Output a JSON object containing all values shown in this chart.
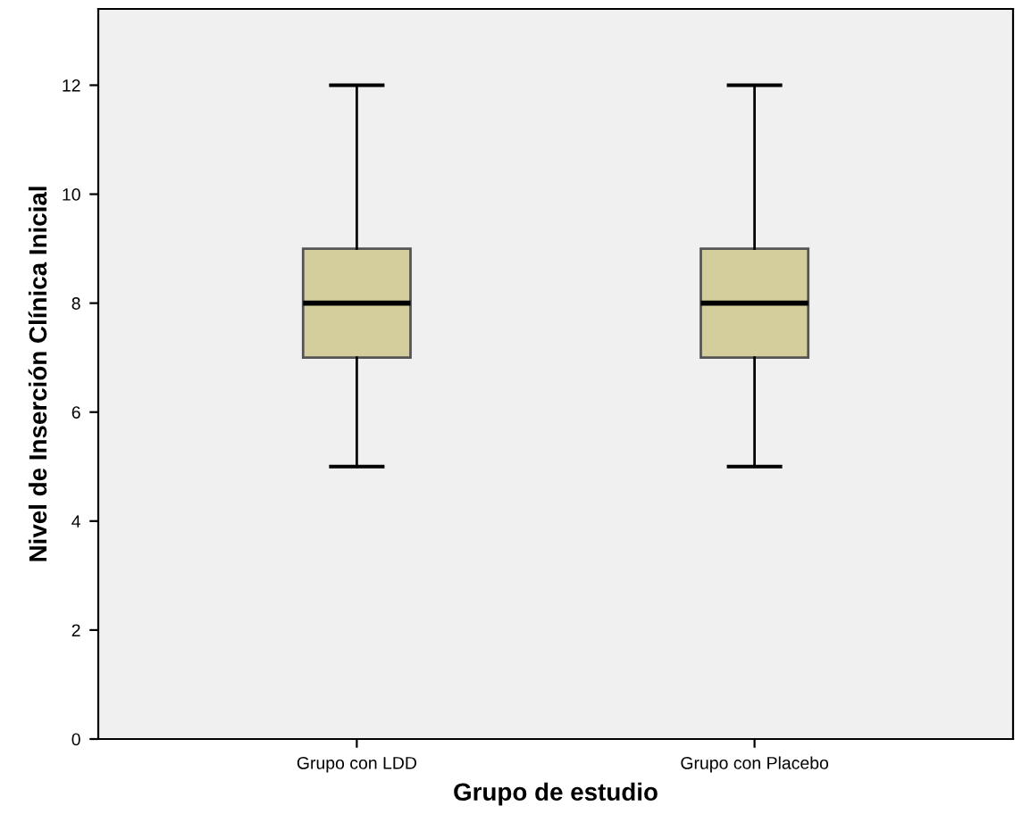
{
  "chart_data": {
    "type": "box",
    "xlabel": "Grupo de estudio",
    "ylabel": "Nivel de Inserción Clínica Inicial",
    "categories": [
      "Grupo con LDD",
      "Grupo con Placebo"
    ],
    "boxes": [
      {
        "low": 5,
        "q1": 7,
        "median": 8,
        "q3": 9,
        "high": 12
      },
      {
        "low": 5,
        "q1": 7,
        "median": 8,
        "q3": 9,
        "high": 12
      }
    ],
    "color": "#d3ce9b",
    "ylim": [
      0,
      13.4
    ],
    "yticks": [
      0,
      2,
      4,
      6,
      8,
      10,
      12
    ],
    "grid": false
  }
}
